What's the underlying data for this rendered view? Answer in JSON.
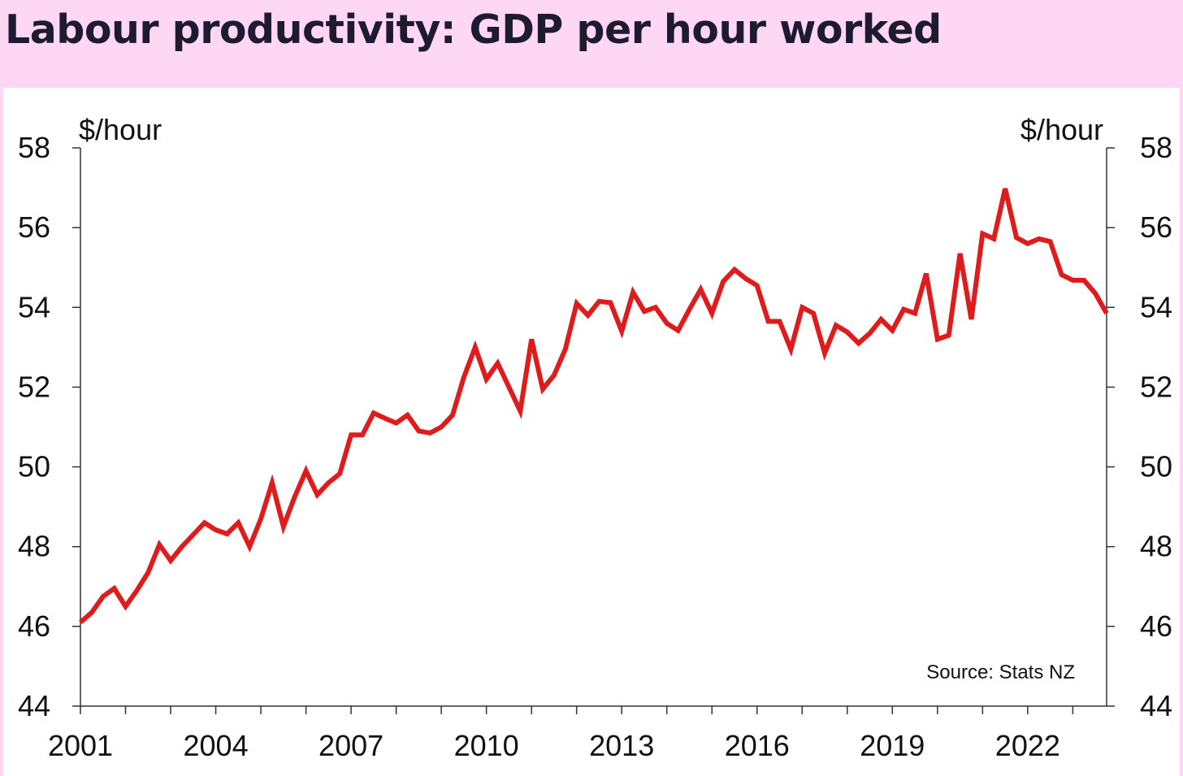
{
  "title": "Labour productivity: GDP per hour worked",
  "colors": {
    "header_bg": "#fdd7f3",
    "line": "#e01b1b",
    "text": "#1e1a30"
  },
  "chart_data": {
    "type": "line",
    "title": "Labour productivity: GDP per hour worked",
    "ylabel_left": "$/hour",
    "ylabel_right": "$/hour",
    "source": "Source: Stats NZ",
    "ylim": [
      44,
      58
    ],
    "yticks": [
      44,
      46,
      48,
      50,
      52,
      54,
      56,
      58
    ],
    "xlim": [
      2001,
      2023.75
    ],
    "xticks": [
      2001,
      2004,
      2007,
      2010,
      2013,
      2016,
      2019,
      2022
    ],
    "grid": false,
    "legend": "none",
    "series": [
      {
        "color": "#e01b1b",
        "x": [
          2001,
          2001.25,
          2001.5,
          2001.75,
          2002,
          2002.25,
          2002.5,
          2002.75,
          2003,
          2003.25,
          2003.5,
          2003.75,
          2004,
          2004.25,
          2004.5,
          2004.75,
          2005,
          2005.25,
          2005.5,
          2005.75,
          2006,
          2006.25,
          2006.5,
          2006.75,
          2007,
          2007.25,
          2007.5,
          2007.75,
          2008,
          2008.25,
          2008.5,
          2008.75,
          2009,
          2009.25,
          2009.5,
          2009.75,
          2010,
          2010.25,
          2010.5,
          2010.75,
          2011,
          2011.25,
          2011.5,
          2011.75,
          2012,
          2012.25,
          2012.5,
          2012.75,
          2013,
          2013.25,
          2013.5,
          2013.75,
          2014,
          2014.25,
          2014.5,
          2014.75,
          2015,
          2015.25,
          2015.5,
          2015.75,
          2016,
          2016.25,
          2016.5,
          2016.75,
          2017,
          2017.25,
          2017.5,
          2017.75,
          2018,
          2018.25,
          2018.5,
          2018.75,
          2019,
          2019.25,
          2019.5,
          2019.75,
          2020,
          2020.25,
          2020.5,
          2020.75,
          2021,
          2021.25,
          2021.5,
          2021.75,
          2022,
          2022.25,
          2022.5,
          2022.75,
          2023,
          2023.25,
          2023.5,
          2023.75
        ],
        "values": [
          46.1,
          46.35,
          46.75,
          46.95,
          46.5,
          46.9,
          47.35,
          48.05,
          47.65,
          48.0,
          48.3,
          48.6,
          48.42,
          48.32,
          48.6,
          48.0,
          48.7,
          49.6,
          48.5,
          49.25,
          49.9,
          49.3,
          49.6,
          49.83,
          50.8,
          50.8,
          51.35,
          51.22,
          51.1,
          51.3,
          50.9,
          50.85,
          51.0,
          51.3,
          52.25,
          53.0,
          52.2,
          52.6,
          52.0,
          51.4,
          53.2,
          51.95,
          52.3,
          52.95,
          54.1,
          53.8,
          54.15,
          54.12,
          53.4,
          54.38,
          53.9,
          54.0,
          53.6,
          53.42,
          53.95,
          54.45,
          53.85,
          54.65,
          54.95,
          54.72,
          54.55,
          53.65,
          53.65,
          52.95,
          54.0,
          53.85,
          52.85,
          53.55,
          53.38,
          53.1,
          53.35,
          53.7,
          53.42,
          53.95,
          53.85,
          54.85,
          53.2,
          53.3,
          55.35,
          53.7,
          55.85,
          55.72,
          56.98,
          55.75,
          55.6,
          55.72,
          55.65,
          54.82,
          54.68,
          54.68,
          54.35,
          53.85
        ]
      }
    ]
  }
}
